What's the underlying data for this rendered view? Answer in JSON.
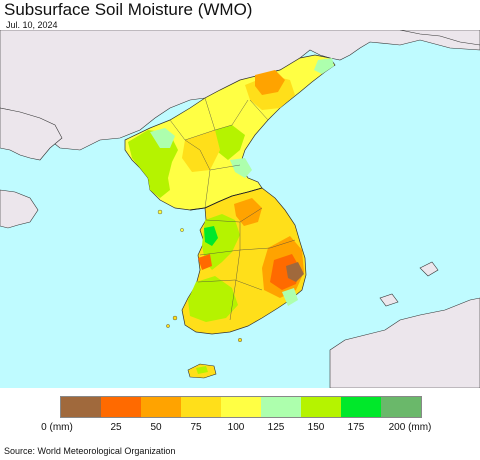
{
  "header": {
    "title": "Subsurface Soil Moisture (WMO)",
    "date": "Jul. 10, 2024"
  },
  "map": {
    "sea_color": "#bffbff",
    "land_outside_color": "#ece6ec",
    "border_color": "#333333"
  },
  "legend": {
    "colors": [
      "#a0693c",
      "#ff6a00",
      "#ffa300",
      "#ffdf1a",
      "#ffff44",
      "#adffad",
      "#b5f300",
      "#00e82a",
      "#6ab86a"
    ],
    "labels": [
      "0 (mm)",
      "25",
      "50",
      "75",
      "100",
      "125",
      "150",
      "175",
      "200 (mm)"
    ]
  },
  "footer": {
    "source": "Source: World Meteorological Organization"
  }
}
